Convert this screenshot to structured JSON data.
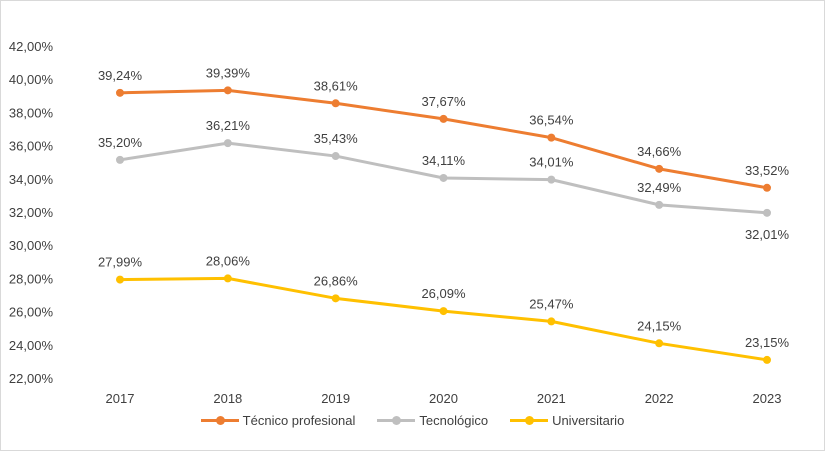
{
  "chart_data": {
    "type": "line",
    "title": "",
    "xlabel": "",
    "ylabel": "",
    "categories": [
      "2017",
      "2018",
      "2019",
      "2020",
      "2021",
      "2022",
      "2023"
    ],
    "ylim": [
      22,
      42
    ],
    "yticks": [
      "22,00%",
      "24,00%",
      "26,00%",
      "28,00%",
      "30,00%",
      "32,00%",
      "34,00%",
      "36,00%",
      "38,00%",
      "40,00%",
      "42,00%"
    ],
    "grid": false,
    "legend_position": "bottom",
    "series": [
      {
        "name": "Técnico profesional",
        "color": "#ED7D31",
        "values": [
          39.24,
          39.39,
          38.61,
          37.67,
          36.54,
          34.66,
          33.52
        ],
        "labels": [
          "39,24%",
          "39,39%",
          "38,61%",
          "37,67%",
          "36,54%",
          "34,66%",
          "33,52%"
        ]
      },
      {
        "name": "Tecnológico",
        "color": "#BFBFBF",
        "values": [
          35.2,
          36.21,
          35.43,
          34.11,
          34.01,
          32.49,
          32.01
        ],
        "labels": [
          "35,20%",
          "36,21%",
          "35,43%",
          "34,11%",
          "34,01%",
          "32,49%",
          "32,01%"
        ]
      },
      {
        "name": "Universitario",
        "color": "#FFC000",
        "values": [
          27.99,
          28.06,
          26.86,
          26.09,
          25.47,
          24.15,
          23.15
        ],
        "labels": [
          "27,99%",
          "28,06%",
          "26,86%",
          "26,09%",
          "25,47%",
          "24,15%",
          "23,15%"
        ]
      }
    ]
  }
}
